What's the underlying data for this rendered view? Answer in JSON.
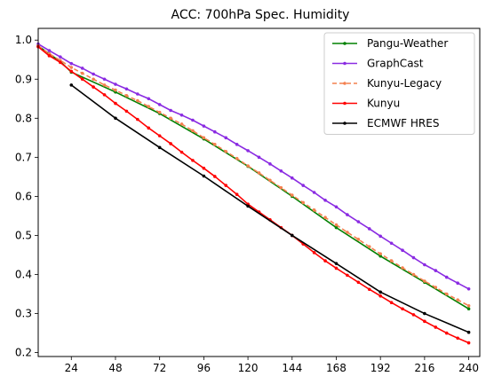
{
  "chart_data": {
    "type": "line",
    "title": "ACC: 700hPa Spec. Humidity",
    "xlabel": "",
    "ylabel": "",
    "xlim": [
      6,
      246
    ],
    "ylim": [
      0.19,
      1.03
    ],
    "xticks": [
      24,
      48,
      72,
      96,
      120,
      144,
      168,
      192,
      216,
      240
    ],
    "yticks": [
      0.2,
      0.3,
      0.4,
      0.5,
      0.6,
      0.7,
      0.8,
      0.9,
      1.0
    ],
    "xtick_labels": [
      "24",
      "48",
      "72",
      "96",
      "120",
      "144",
      "168",
      "192",
      "216",
      "240"
    ],
    "ytick_labels": [
      "0.2",
      "0.3",
      "0.4",
      "0.5",
      "0.6",
      "0.7",
      "0.8",
      "0.9",
      "1.0"
    ],
    "grid": false,
    "legend_position": "top-right",
    "series": [
      {
        "name": "Pangu-Weather",
        "color": "#008000",
        "dash": "solid",
        "x": [
          6,
          12,
          18,
          24,
          48,
          72,
          96,
          120,
          144,
          168,
          192,
          216,
          240
        ],
        "y": [
          0.985,
          0.965,
          0.945,
          0.918,
          0.867,
          0.812,
          0.747,
          0.677,
          0.6,
          0.52,
          0.447,
          0.38,
          0.312
        ]
      },
      {
        "name": "GraphCast",
        "color": "#8a2be2",
        "dash": "solid",
        "x": [
          6,
          12,
          18,
          24,
          30,
          36,
          42,
          48,
          54,
          60,
          66,
          72,
          78,
          84,
          90,
          96,
          102,
          108,
          114,
          120,
          126,
          132,
          138,
          144,
          150,
          156,
          162,
          168,
          174,
          180,
          186,
          192,
          198,
          204,
          210,
          216,
          222,
          228,
          234,
          240
        ],
        "y": [
          0.99,
          0.973,
          0.957,
          0.94,
          0.928,
          0.913,
          0.9,
          0.887,
          0.875,
          0.862,
          0.85,
          0.835,
          0.82,
          0.808,
          0.795,
          0.78,
          0.765,
          0.75,
          0.733,
          0.717,
          0.7,
          0.683,
          0.665,
          0.647,
          0.628,
          0.61,
          0.59,
          0.573,
          0.553,
          0.535,
          0.517,
          0.498,
          0.48,
          0.462,
          0.443,
          0.425,
          0.41,
          0.393,
          0.378,
          0.363
        ]
      },
      {
        "name": "Kunyu-Legacy",
        "color": "#f4804f",
        "dash": "dashed",
        "x": [
          6,
          12,
          18,
          24,
          30,
          36,
          42,
          48,
          54,
          60,
          66,
          72,
          78,
          84,
          90,
          96,
          102,
          108,
          114,
          120,
          126,
          132,
          138,
          144,
          150,
          156,
          162,
          168,
          174,
          180,
          186,
          192,
          198,
          204,
          210,
          216,
          222,
          228,
          234,
          240
        ],
        "y": [
          0.985,
          0.965,
          0.948,
          0.93,
          0.915,
          0.9,
          0.885,
          0.872,
          0.858,
          0.845,
          0.83,
          0.815,
          0.8,
          0.785,
          0.768,
          0.75,
          0.733,
          0.715,
          0.697,
          0.678,
          0.66,
          0.641,
          0.622,
          0.603,
          0.584,
          0.565,
          0.546,
          0.527,
          0.508,
          0.49,
          0.471,
          0.453,
          0.435,
          0.417,
          0.4,
          0.383,
          0.367,
          0.35,
          0.335,
          0.32
        ]
      },
      {
        "name": "Kunyu",
        "color": "#ff0000",
        "dash": "solid",
        "x": [
          6,
          12,
          18,
          24,
          30,
          36,
          42,
          48,
          54,
          60,
          66,
          72,
          78,
          84,
          90,
          96,
          102,
          108,
          114,
          120,
          126,
          132,
          138,
          144,
          150,
          156,
          162,
          168,
          174,
          180,
          186,
          192,
          198,
          204,
          210,
          216,
          222,
          228,
          234,
          240
        ],
        "y": [
          0.983,
          0.96,
          0.943,
          0.92,
          0.9,
          0.88,
          0.86,
          0.838,
          0.818,
          0.797,
          0.775,
          0.755,
          0.735,
          0.713,
          0.692,
          0.672,
          0.651,
          0.628,
          0.605,
          0.58,
          0.56,
          0.54,
          0.52,
          0.5,
          0.478,
          0.456,
          0.435,
          0.416,
          0.398,
          0.38,
          0.362,
          0.345,
          0.328,
          0.312,
          0.297,
          0.28,
          0.265,
          0.25,
          0.237,
          0.225
        ]
      },
      {
        "name": "ECMWF HRES",
        "color": "#000000",
        "dash": "solid",
        "x": [
          24,
          48,
          72,
          96,
          120,
          144,
          168,
          192,
          216,
          240
        ],
        "y": [
          0.885,
          0.8,
          0.725,
          0.652,
          0.575,
          0.5,
          0.428,
          0.355,
          0.3,
          0.252
        ]
      }
    ]
  }
}
